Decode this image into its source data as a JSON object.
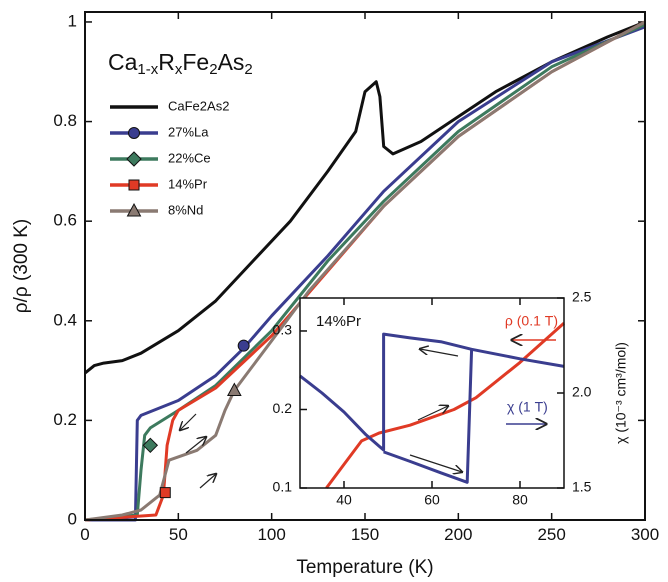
{
  "chart_data": [
    {
      "type": "line",
      "title": [
        "Ca",
        "1-x",
        "R",
        "x",
        "Fe",
        "2",
        "As",
        "2"
      ],
      "xlabel": "Temperature (K)",
      "ylabel": "ρ/ρ (300 K)",
      "xlim": [
        0,
        300
      ],
      "ylim": [
        0,
        1.02
      ],
      "xticks": [
        0,
        50,
        100,
        150,
        200,
        250,
        300
      ],
      "yticks": [
        0,
        0.2,
        0.4,
        0.6,
        0.8,
        1
      ],
      "legend": "upper left",
      "series": [
        {
          "name": "CaFe2As2",
          "color": "#111111",
          "marker_shape": "none",
          "x": [
            0,
            5,
            10,
            20,
            30,
            50,
            70,
            90,
            110,
            130,
            145,
            150,
            156,
            158,
            160,
            165,
            180,
            200,
            220,
            250,
            280,
            300
          ],
          "values": [
            0.295,
            0.31,
            0.315,
            0.32,
            0.335,
            0.38,
            0.44,
            0.52,
            0.6,
            0.7,
            0.78,
            0.86,
            0.88,
            0.85,
            0.75,
            0.735,
            0.76,
            0.81,
            0.86,
            0.92,
            0.97,
            1.0
          ]
        },
        {
          "name": "27%La",
          "color": "#3a3d8f",
          "marker_shape": "circle",
          "marker": {
            "x": 85,
            "y": 0.35
          },
          "x": [
            0,
            27,
            28,
            30,
            50,
            70,
            85,
            100,
            130,
            160,
            200,
            250,
            300
          ],
          "values": [
            0,
            0.0,
            0.2,
            0.21,
            0.24,
            0.29,
            0.345,
            0.41,
            0.53,
            0.66,
            0.8,
            0.92,
            0.99
          ]
        },
        {
          "name": "22%Ce",
          "color": "#3d7a5e",
          "marker_shape": "diamond",
          "marker": {
            "x": 35,
            "y": 0.15
          },
          "x": [
            0,
            28,
            30,
            32,
            35,
            50,
            70,
            100,
            130,
            160,
            200,
            250,
            300
          ],
          "values": [
            0,
            0.01,
            0.1,
            0.17,
            0.185,
            0.22,
            0.27,
            0.38,
            0.52,
            0.64,
            0.78,
            0.91,
            0.995
          ]
        },
        {
          "name": "14%Pr",
          "color": "#e03a25",
          "marker_shape": "square",
          "marker": {
            "x": 43,
            "y": 0.055
          },
          "x": [
            0,
            38,
            42,
            44,
            47,
            50,
            70,
            100,
            130,
            160,
            200,
            250,
            300
          ],
          "values": [
            0,
            0.01,
            0.05,
            0.15,
            0.2,
            0.22,
            0.265,
            0.37,
            0.5,
            0.63,
            0.77,
            0.9,
            1.0
          ]
        },
        {
          "name": "8%Nd",
          "color": "#8a7a72",
          "marker_shape": "triangle",
          "marker": {
            "x": 80,
            "y": 0.26
          },
          "x": [
            0,
            20,
            30,
            40,
            45,
            60,
            70,
            75,
            80,
            100,
            120,
            160,
            200,
            250,
            300
          ],
          "values": [
            0,
            0.01,
            0.02,
            0.05,
            0.12,
            0.14,
            0.17,
            0.22,
            0.26,
            0.36,
            0.46,
            0.63,
            0.77,
            0.9,
            1.0
          ]
        }
      ]
    },
    {
      "type": "line",
      "label": "14%Pr",
      "ylabel2": "χ (10⁻³ cm³/mol)",
      "xlim": [
        30,
        90
      ],
      "ylim": [
        0.1,
        0.342
      ],
      "y2lim": [
        1.5,
        2.5
      ],
      "xticks": [
        40,
        60,
        80
      ],
      "yticks": [
        0.1,
        0.2,
        0.3
      ],
      "y2ticks": [
        1.5,
        {
          "value": 2,
          "label": "2.0"
        },
        2.5
      ],
      "annotations": [
        {
          "text": "ρ (0.1 T)",
          "color": "#e03a25"
        },
        {
          "text": "χ (1 T)",
          "color": "#3a3d8f"
        }
      ],
      "series": [
        {
          "color": "#e03a25",
          "x": [
            36,
            40,
            44,
            48,
            55,
            65,
            70,
            80,
            90
          ],
          "values": [
            0.1,
            0.13,
            0.16,
            0.17,
            0.18,
            0.2,
            0.215,
            0.26,
            0.31
          ]
        },
        {
          "color": "#3a3d8f",
          "axis": "y2",
          "x": [
            30,
            35,
            40,
            45,
            48,
            49,
            49,
            55,
            62,
            69,
            80,
            90,
            null,
            49,
            55,
            62,
            68,
            69
          ],
          "values": [
            2.09,
            2.0,
            1.9,
            1.78,
            1.72,
            1.7,
            2.31,
            2.29,
            2.27,
            2.23,
            2.18,
            2.14,
            null,
            1.69,
            1.64,
            1.58,
            1.53,
            2.23
          ]
        }
      ]
    }
  ]
}
